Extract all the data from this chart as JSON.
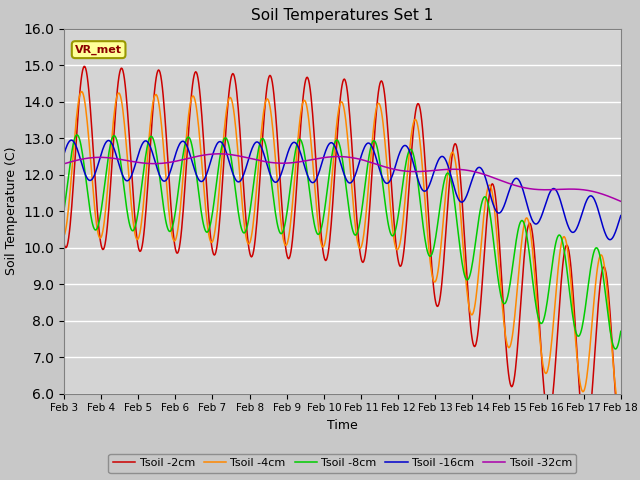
{
  "title": "Soil Temperatures Set 1",
  "xlabel": "Time",
  "ylabel": "Soil Temperature (C)",
  "annotation": "VR_met",
  "ylim": [
    6.0,
    16.0
  ],
  "yticks": [
    6.0,
    7.0,
    8.0,
    9.0,
    10.0,
    11.0,
    12.0,
    13.0,
    14.0,
    15.0,
    16.0
  ],
  "colors": {
    "Tsoil -2cm": "#cc0000",
    "Tsoil -4cm": "#ff8800",
    "Tsoil -8cm": "#00cc00",
    "Tsoil -16cm": "#0000cc",
    "Tsoil -32cm": "#aa00aa"
  },
  "fig_bg_color": "#c8c8c8",
  "plot_bg_color": "#d4d4d4",
  "n_points": 720,
  "n_days": 15
}
